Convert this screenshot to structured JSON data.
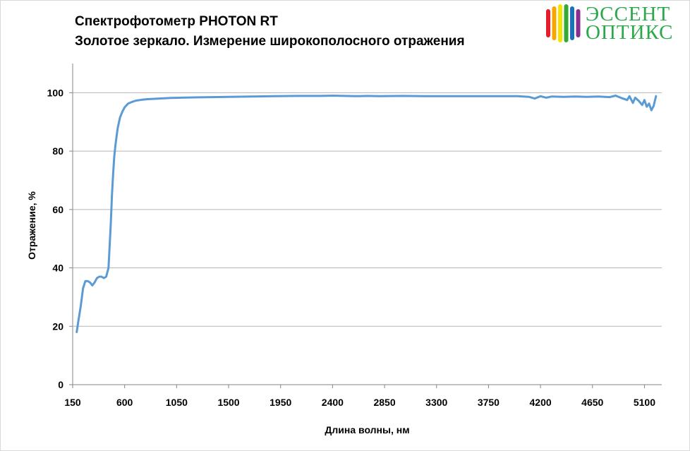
{
  "title": {
    "line1": "Спектрофотометр PHOTON RT",
    "line2": "Золотое зеркало. Измерение широкополосного отражения"
  },
  "logo": {
    "line1": "ЭССЕНТ",
    "line2": "ОПТИКС",
    "stripe_colors": [
      "#e31e2c",
      "#f7a600",
      "#f5e300",
      "#36a935",
      "#1d71b8",
      "#8a2d8f"
    ],
    "text_color": "#2aa84a"
  },
  "chart_data": {
    "type": "line",
    "xlabel": "Длина волны, нм",
    "ylabel": "Отражение, %",
    "xlim": [
      150,
      5250
    ],
    "ylim": [
      0,
      110
    ],
    "x_ticks": [
      150,
      600,
      1050,
      1500,
      1950,
      2400,
      2850,
      3300,
      3750,
      4200,
      4650,
      5100
    ],
    "y_ticks": [
      0,
      20,
      40,
      60,
      80,
      100
    ],
    "grid": "horizontal",
    "line_color": "#5b9bd5",
    "series": [
      {
        "x": [
          185,
          200,
          220,
          240,
          260,
          280,
          300,
          320,
          340,
          360,
          380,
          400,
          420,
          440,
          460,
          480,
          490,
          500,
          510,
          520,
          530,
          540,
          560,
          580,
          600,
          630,
          660,
          700,
          750,
          800,
          900,
          1000,
          1100,
          1200,
          1350,
          1500,
          1700,
          1900,
          2100,
          2300,
          2400,
          2500,
          2600,
          2700,
          2800,
          3000,
          3200,
          3400,
          3600,
          3800,
          4000,
          4100,
          4150,
          4200,
          4250,
          4300,
          4400,
          4500,
          4600,
          4700,
          4800,
          4850,
          4900,
          4950,
          4970,
          5000,
          5020,
          5050,
          5080,
          5100,
          5120,
          5140,
          5160,
          5180,
          5200
        ],
        "y": [
          18,
          22,
          27,
          33,
          35.5,
          35.5,
          35,
          34,
          35,
          36.5,
          37,
          37,
          36.5,
          37,
          40,
          55,
          65,
          72,
          78,
          82,
          85,
          88,
          91.5,
          93.5,
          95,
          96.3,
          96.8,
          97.3,
          97.6,
          97.8,
          98.0,
          98.2,
          98.3,
          98.4,
          98.5,
          98.6,
          98.7,
          98.8,
          98.9,
          98.9,
          99.0,
          98.9,
          98.8,
          98.9,
          98.8,
          98.9,
          98.8,
          98.8,
          98.8,
          98.8,
          98.8,
          98.6,
          98.0,
          98.8,
          98.3,
          98.7,
          98.6,
          98.7,
          98.6,
          98.7,
          98.5,
          99.0,
          98.2,
          97.5,
          98.8,
          96.5,
          98.3,
          97.2,
          95.8,
          97.5,
          95.2,
          96.3,
          94.0,
          95.5,
          98.8
        ]
      }
    ]
  }
}
